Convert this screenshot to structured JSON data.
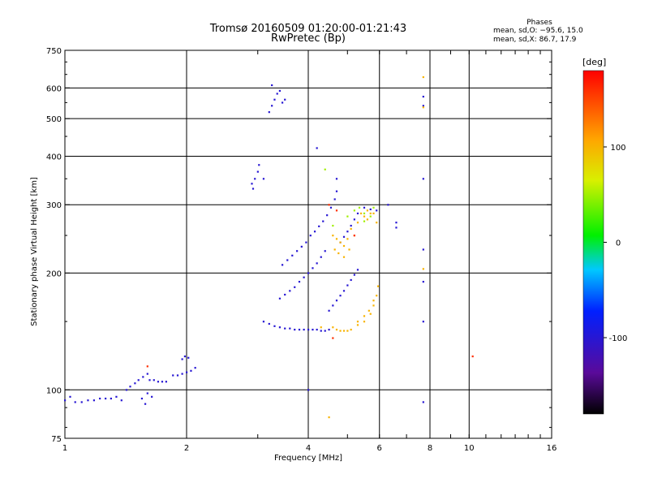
{
  "chart_data": {
    "type": "scatter",
    "title": "Tromsø 20160509 01:20:00-01:21:43",
    "subtitle": "RwPretec (Bp)",
    "xlabel": "Frequency [MHz]",
    "ylabel": "Stationary phase Virtual Height [km]",
    "x_scale": "log",
    "y_scale": "log",
    "xlim": [
      1,
      16
    ],
    "ylim": [
      75,
      750
    ],
    "x_ticks": [
      1,
      2,
      4,
      6,
      8,
      10,
      16
    ],
    "y_ticks": [
      75,
      100,
      200,
      300,
      400,
      500,
      600,
      750
    ],
    "grid": true,
    "stats": {
      "heading": "Phases",
      "line_o": "mean, sd,O: −95.6, 15.0",
      "line_x": "mean, sd,X:  86.7, 17.9"
    },
    "colorbar": {
      "label": "[deg]",
      "range": [
        -180,
        180
      ],
      "ticks": [
        100,
        0,
        -100
      ]
    },
    "series": [
      {
        "color_value": -100,
        "points": [
          [
            1.0,
            94
          ],
          [
            1.03,
            96
          ],
          [
            1.06,
            93
          ],
          [
            1.1,
            93
          ],
          [
            1.14,
            94
          ],
          [
            1.18,
            94
          ],
          [
            1.22,
            95
          ],
          [
            1.26,
            95
          ],
          [
            1.3,
            95
          ],
          [
            1.34,
            96
          ],
          [
            1.38,
            94
          ],
          [
            1.42,
            100
          ],
          [
            1.45,
            102
          ],
          [
            1.49,
            104
          ],
          [
            1.52,
            106
          ],
          [
            1.56,
            108
          ],
          [
            1.6,
            110
          ],
          [
            1.62,
            106
          ],
          [
            1.66,
            106
          ],
          [
            1.7,
            105
          ],
          [
            1.74,
            105
          ],
          [
            1.78,
            105
          ],
          [
            1.55,
            95
          ],
          [
            1.58,
            92
          ],
          [
            1.6,
            98
          ],
          [
            1.64,
            96
          ],
          [
            1.85,
            109
          ],
          [
            1.9,
            109
          ],
          [
            1.95,
            110
          ],
          [
            2.0,
            111
          ],
          [
            2.05,
            112
          ],
          [
            2.1,
            114
          ],
          [
            1.95,
            120
          ],
          [
            1.98,
            122
          ],
          [
            2.02,
            121
          ],
          [
            2.9,
            340
          ],
          [
            2.95,
            350
          ],
          [
            3.0,
            365
          ],
          [
            2.92,
            330
          ],
          [
            3.02,
            380
          ],
          [
            3.2,
            520
          ],
          [
            3.25,
            540
          ],
          [
            3.3,
            560
          ],
          [
            3.35,
            580
          ],
          [
            3.45,
            550
          ],
          [
            3.5,
            560
          ],
          [
            3.25,
            610
          ],
          [
            3.4,
            590
          ],
          [
            3.1,
            150
          ],
          [
            3.2,
            148
          ],
          [
            3.3,
            146
          ],
          [
            3.4,
            145
          ],
          [
            3.5,
            144
          ],
          [
            3.6,
            144
          ],
          [
            3.7,
            143
          ],
          [
            3.8,
            143
          ],
          [
            3.9,
            143
          ],
          [
            4.0,
            143
          ],
          [
            4.1,
            143
          ],
          [
            4.2,
            143
          ],
          [
            4.3,
            142
          ],
          [
            4.4,
            142
          ],
          [
            4.5,
            143
          ],
          [
            3.4,
            172
          ],
          [
            3.5,
            176
          ],
          [
            3.6,
            180
          ],
          [
            3.7,
            184
          ],
          [
            3.8,
            190
          ],
          [
            3.9,
            195
          ],
          [
            4.0,
            200
          ],
          [
            4.1,
            206
          ],
          [
            4.2,
            212
          ],
          [
            4.3,
            220
          ],
          [
            4.4,
            228
          ],
          [
            3.45,
            210
          ],
          [
            3.55,
            216
          ],
          [
            3.65,
            222
          ],
          [
            3.75,
            228
          ],
          [
            3.85,
            234
          ],
          [
            3.95,
            240
          ],
          [
            4.05,
            250
          ],
          [
            4.15,
            256
          ],
          [
            4.25,
            264
          ],
          [
            4.35,
            272
          ],
          [
            4.45,
            282
          ],
          [
            4.55,
            295
          ],
          [
            4.65,
            310
          ],
          [
            4.7,
            325
          ],
          [
            4.5,
            160
          ],
          [
            4.6,
            165
          ],
          [
            4.7,
            170
          ],
          [
            4.8,
            175
          ],
          [
            4.9,
            180
          ],
          [
            5.0,
            186
          ],
          [
            5.1,
            192
          ],
          [
            5.2,
            198
          ],
          [
            5.3,
            204
          ],
          [
            4.8,
            240
          ],
          [
            4.9,
            248
          ],
          [
            5.0,
            256
          ],
          [
            5.1,
            265
          ],
          [
            5.2,
            275
          ],
          [
            5.3,
            285
          ],
          [
            5.5,
            295
          ],
          [
            5.7,
            292
          ],
          [
            5.9,
            290
          ],
          [
            6.3,
            300
          ],
          [
            6.6,
            270
          ],
          [
            6.6,
            262
          ],
          [
            4.0,
            100
          ],
          [
            7.7,
            93
          ],
          [
            7.7,
            150
          ],
          [
            7.7,
            190
          ],
          [
            7.7,
            230
          ],
          [
            7.7,
            350
          ],
          [
            7.7,
            570
          ],
          [
            7.7,
            540
          ],
          [
            3.1,
            350
          ],
          [
            4.2,
            420
          ],
          [
            4.7,
            350
          ]
        ]
      },
      {
        "color_value": 100,
        "points": [
          [
            4.6,
            145
          ],
          [
            4.7,
            143
          ],
          [
            4.8,
            142
          ],
          [
            4.9,
            142
          ],
          [
            5.0,
            142
          ],
          [
            5.1,
            143
          ],
          [
            5.3,
            147
          ],
          [
            5.5,
            150
          ],
          [
            5.7,
            157
          ],
          [
            5.8,
            165
          ],
          [
            5.9,
            175
          ],
          [
            5.95,
            185
          ],
          [
            5.3,
            150
          ],
          [
            5.5,
            155
          ],
          [
            5.65,
            160
          ],
          [
            5.8,
            170
          ],
          [
            4.6,
            250
          ],
          [
            4.7,
            245
          ],
          [
            4.8,
            240
          ],
          [
            4.9,
            235
          ],
          [
            5.0,
            245
          ],
          [
            5.1,
            260
          ],
          [
            5.3,
            270
          ],
          [
            5.5,
            280
          ],
          [
            5.6,
            275
          ],
          [
            5.7,
            285
          ],
          [
            5.9,
            270
          ],
          [
            4.65,
            230
          ],
          [
            4.75,
            225
          ],
          [
            4.9,
            220
          ],
          [
            5.05,
            230
          ],
          [
            5.2,
            250
          ],
          [
            5.4,
            285
          ],
          [
            5.6,
            290
          ],
          [
            5.8,
            285
          ],
          [
            4.5,
            85
          ],
          [
            4.3,
            145
          ],
          [
            7.7,
            640
          ],
          [
            7.7,
            535
          ],
          [
            7.7,
            205
          ]
        ]
      },
      {
        "color_value": 50,
        "points": [
          [
            5.2,
            290
          ],
          [
            5.35,
            295
          ],
          [
            5.5,
            285
          ],
          [
            5.7,
            280
          ],
          [
            5.8,
            295
          ],
          [
            4.6,
            265
          ],
          [
            5.0,
            280
          ],
          [
            5.5,
            272
          ],
          [
            4.4,
            370
          ]
        ]
      },
      {
        "color_value": 160,
        "points": [
          [
            4.5,
            300
          ],
          [
            4.7,
            290
          ],
          [
            5.2,
            250
          ],
          [
            1.6,
            115
          ],
          [
            10.2,
            122
          ],
          [
            4.6,
            136
          ]
        ]
      }
    ]
  }
}
